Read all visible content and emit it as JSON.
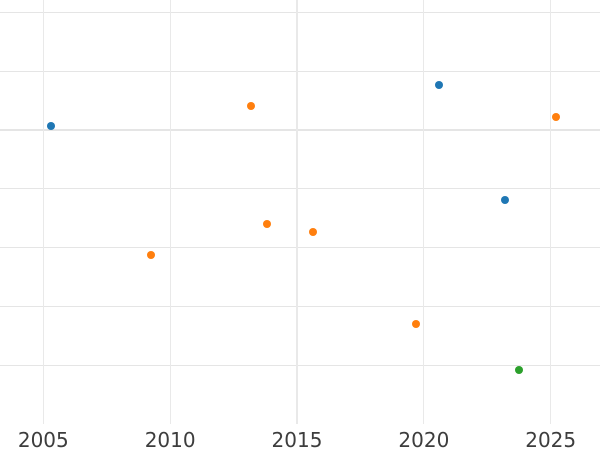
{
  "chart": {
    "background_color": "#ffffff",
    "horizontal_grid_color": "#e5e5e5",
    "vertical_grid_color": "#e9e9e9",
    "tick_label_color": "#3d3d3d"
  },
  "chart_data": {
    "type": "scatter",
    "title": "",
    "xlabel": "",
    "ylabel": "",
    "x_tick_labels": [
      "2005",
      "2010",
      "2015",
      "2020",
      "2025"
    ],
    "x_ticks": [
      2005,
      2010,
      2015,
      2020,
      2025
    ],
    "x_range_visible": [
      2003.3,
      2026.9
    ],
    "y_axis_labels_visible": false,
    "y_units_note": "y-axis labels cropped out of screenshot; y given in unlabeled gridline units (one unit = one gridline spacing, 0 = implied bottom axis line)",
    "y_visible_gridline_units": [
      1,
      2,
      3,
      4,
      5,
      6,
      7
    ],
    "y_range_visible": [
      -0.44,
      7.21
    ],
    "grid": true,
    "legend_position": "none",
    "marker_size_px": 8,
    "series": [
      {
        "name": "series-blue",
        "color": "#1f77b4",
        "points": [
          {
            "x": 2005.29,
            "y": 5.06
          },
          {
            "x": 2020.6,
            "y": 5.76
          },
          {
            "x": 2023.21,
            "y": 3.81
          }
        ]
      },
      {
        "name": "series-orange",
        "color": "#ff7f0e",
        "points": [
          {
            "x": 2009.25,
            "y": 2.88
          },
          {
            "x": 2013.19,
            "y": 5.41
          },
          {
            "x": 2013.81,
            "y": 3.4
          },
          {
            "x": 2015.62,
            "y": 3.27
          },
          {
            "x": 2019.69,
            "y": 1.7
          },
          {
            "x": 2025.21,
            "y": 5.22
          }
        ]
      },
      {
        "name": "series-green",
        "color": "#2ca02c",
        "points": [
          {
            "x": 2023.76,
            "y": 0.91
          }
        ]
      }
    ]
  }
}
